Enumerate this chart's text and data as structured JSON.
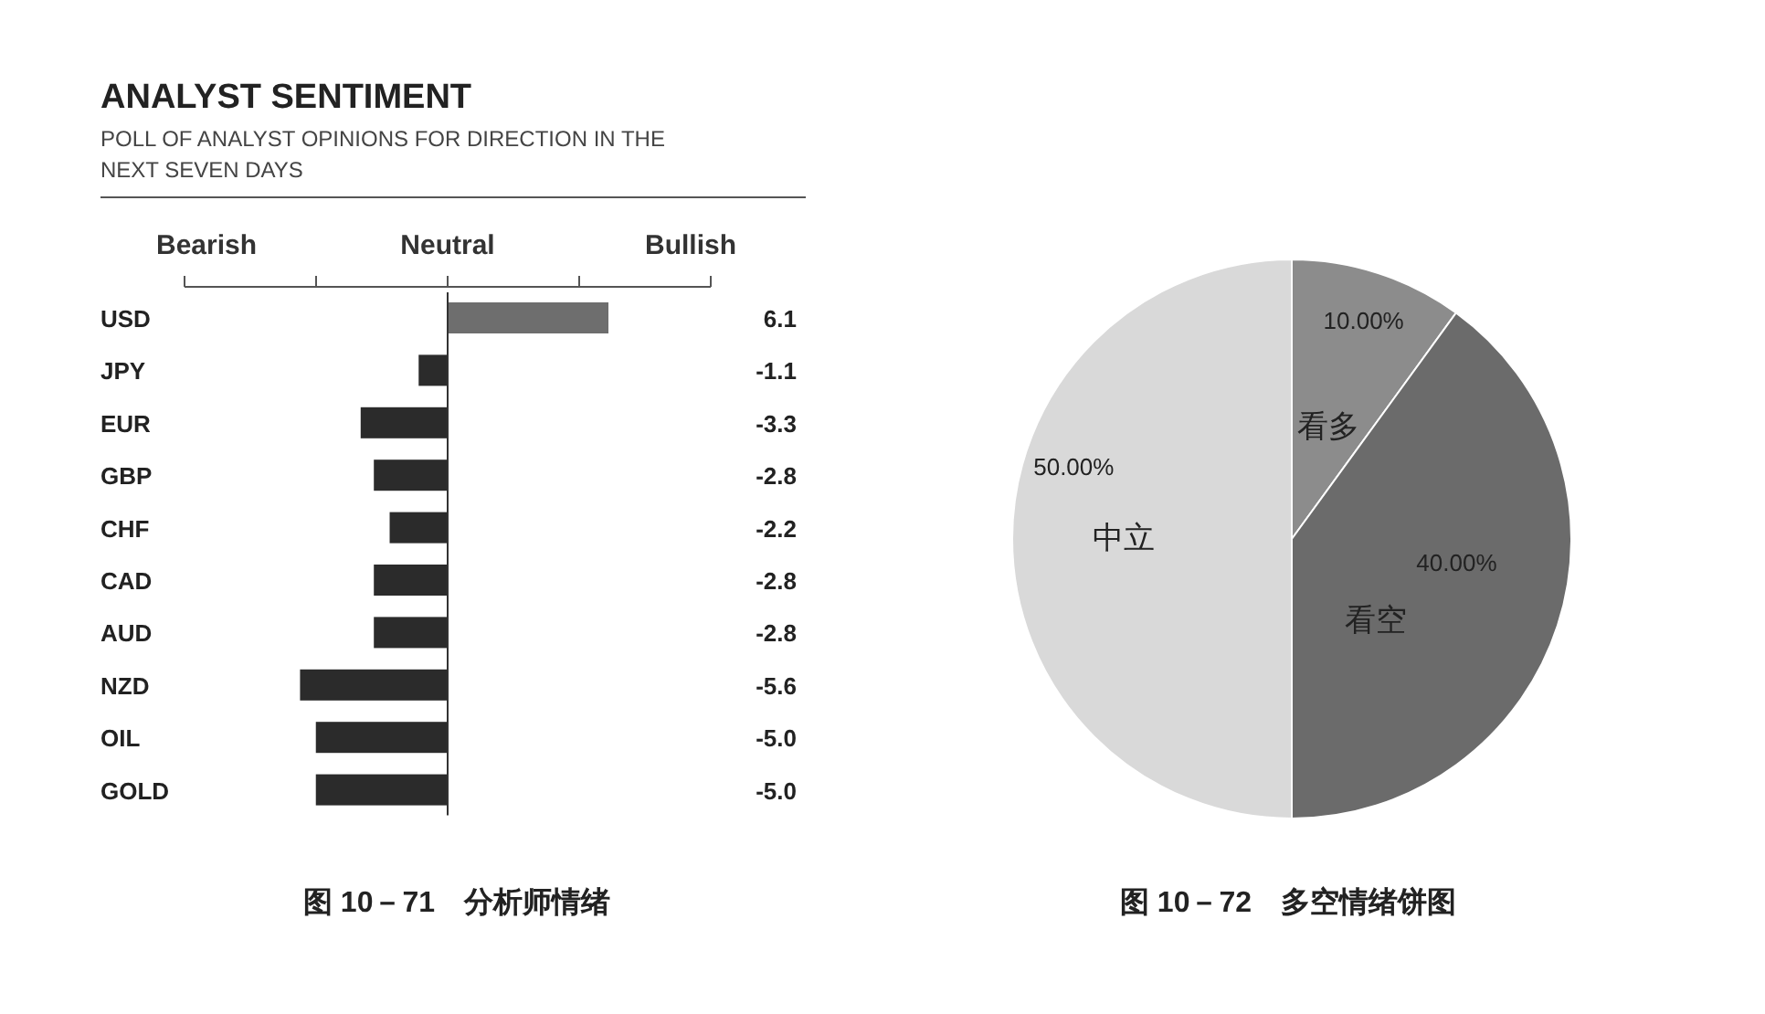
{
  "chart_data": [
    {
      "type": "bar",
      "orientation": "horizontal",
      "title": "ANALYST SENTIMENT",
      "subtitle": "POLL OF ANALYST OPINIONS FOR DIRECTION IN THE NEXT SEVEN DAYS",
      "categories": [
        "USD",
        "JPY",
        "EUR",
        "GBP",
        "CHF",
        "CAD",
        "AUD",
        "NZD",
        "OIL",
        "GOLD"
      ],
      "values": [
        6.1,
        -1.1,
        -3.3,
        -2.8,
        -2.2,
        -2.8,
        -2.8,
        -5.6,
        -5.0,
        -5.0
      ],
      "value_labels": [
        "6.1",
        "-1.1",
        "-3.3",
        "-2.8",
        "-2.2",
        "-2.8",
        "-2.8",
        "-5.6",
        "-5.0",
        "-5.0"
      ],
      "colors": [
        "#6e6e6e",
        "#2b2b2b",
        "#2b2b2b",
        "#2b2b2b",
        "#2b2b2b",
        "#2b2b2b",
        "#2b2b2b",
        "#2b2b2b",
        "#2b2b2b",
        "#2b2b2b"
      ],
      "ref_lines": [
        {
          "axis": "x",
          "value": 0,
          "label": null,
          "color": "#333333"
        }
      ],
      "annotations": [
        "Bearish",
        "Bullish",
        "Neutral",
        "图 10－71　分析师情绪"
      ]
    },
    {
      "type": "pie",
      "categories": [
        "看多",
        "看空",
        "中立"
      ],
      "values": [
        10,
        40,
        50
      ],
      "value_labels": [
        "10.00%",
        "40.00%",
        "50.00%"
      ],
      "colors": [
        "#8c8c8c",
        "#6b6b6b",
        "#d9d9d9"
      ],
      "annotations": [
        "图 10－72　多空情绪饼图"
      ]
    }
  ]
}
